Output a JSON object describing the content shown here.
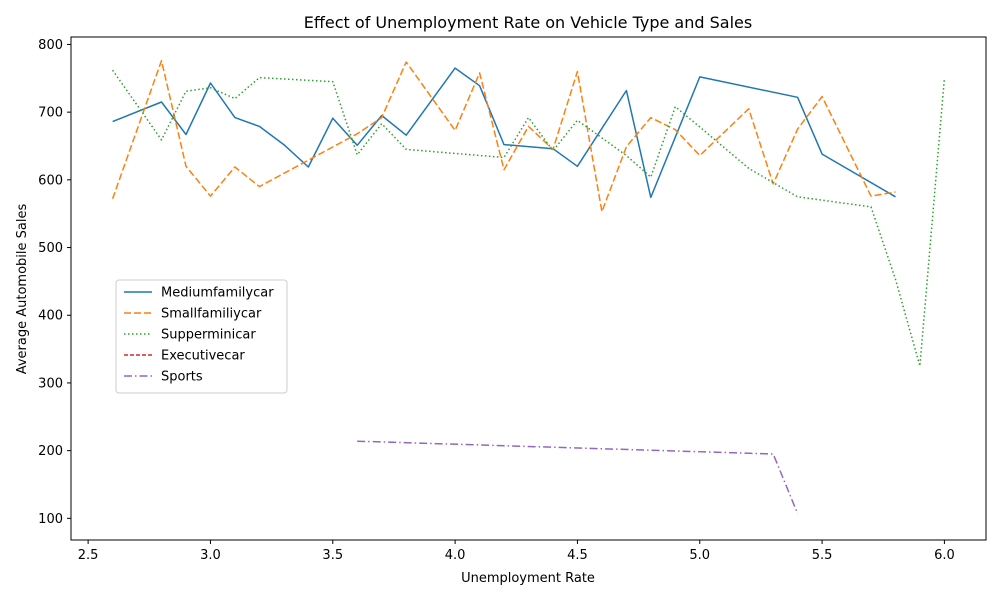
{
  "chart_data": {
    "type": "line",
    "title": "Effect of Unemployment Rate on Vehicle Type and Sales",
    "xlabel": "Unemployment Rate",
    "ylabel": "Average Automobile Sales",
    "xlim": [
      2.43,
      6.17
    ],
    "ylim": [
      68,
      811
    ],
    "xticks": [
      "2.5",
      "3.0",
      "3.5",
      "4.0",
      "4.5",
      "5.0",
      "5.5",
      "6.0"
    ],
    "yticks": [
      "100",
      "200",
      "300",
      "400",
      "500",
      "600",
      "700",
      "800"
    ],
    "grid": false,
    "legend_position": "center-left",
    "series": [
      {
        "name": "Mediumfamilycar",
        "color": "#1f77b4",
        "dash": "solid",
        "points": [
          [
            2.6,
            686
          ],
          [
            2.8,
            715
          ],
          [
            2.9,
            667
          ],
          [
            3.0,
            743
          ],
          [
            3.1,
            692
          ],
          [
            3.2,
            679
          ],
          [
            3.3,
            652
          ],
          [
            3.4,
            619
          ],
          [
            3.5,
            691
          ],
          [
            3.6,
            651
          ],
          [
            3.7,
            695
          ],
          [
            3.8,
            666
          ],
          [
            4.0,
            765
          ],
          [
            4.1,
            739
          ],
          [
            4.2,
            652
          ],
          [
            4.4,
            646
          ],
          [
            4.5,
            620
          ],
          [
            4.7,
            732
          ],
          [
            4.8,
            574
          ],
          [
            5.0,
            752
          ],
          [
            5.4,
            722
          ],
          [
            5.5,
            638
          ],
          [
            5.8,
            575
          ]
        ]
      },
      {
        "name": "Smallfamiliycar",
        "color": "#ff7f0e",
        "dash": "dashed",
        "points": [
          [
            2.6,
            572
          ],
          [
            2.8,
            776
          ],
          [
            2.9,
            620
          ],
          [
            3.0,
            576
          ],
          [
            3.1,
            619
          ],
          [
            3.2,
            590
          ],
          [
            3.6,
            668
          ],
          [
            3.7,
            692
          ],
          [
            3.8,
            774
          ],
          [
            4.0,
            673
          ],
          [
            4.1,
            758
          ],
          [
            4.2,
            615
          ],
          [
            4.3,
            679
          ],
          [
            4.4,
            645
          ],
          [
            4.5,
            760
          ],
          [
            4.6,
            553
          ],
          [
            4.7,
            649
          ],
          [
            4.8,
            692
          ],
          [
            4.9,
            674
          ],
          [
            5.0,
            636
          ],
          [
            5.2,
            705
          ],
          [
            5.3,
            594
          ],
          [
            5.4,
            675
          ],
          [
            5.5,
            723
          ],
          [
            5.7,
            576
          ],
          [
            5.8,
            582
          ]
        ]
      },
      {
        "name": "Supperminicar",
        "color": "#2ca02c",
        "dash": "dotted",
        "points": [
          [
            2.6,
            762
          ],
          [
            2.8,
            659
          ],
          [
            2.9,
            731
          ],
          [
            3.0,
            736
          ],
          [
            3.1,
            720
          ],
          [
            3.2,
            751
          ],
          [
            3.5,
            745
          ],
          [
            3.6,
            637
          ],
          [
            3.7,
            683
          ],
          [
            3.8,
            645
          ],
          [
            4.2,
            633
          ],
          [
            4.3,
            692
          ],
          [
            4.4,
            643
          ],
          [
            4.5,
            688
          ],
          [
            4.7,
            636
          ],
          [
            4.8,
            604
          ],
          [
            4.9,
            708
          ],
          [
            5.0,
            678
          ],
          [
            5.2,
            617
          ],
          [
            5.4,
            575
          ],
          [
            5.7,
            560
          ],
          [
            5.8,
            453
          ],
          [
            5.9,
            325
          ],
          [
            6.0,
            750
          ]
        ]
      },
      {
        "name": "Executivecar",
        "color": "#d62728",
        "dash": "dashed-fine",
        "points": []
      },
      {
        "name": "Sports",
        "color": "#9467bd",
        "dash": "dashdot",
        "points": [
          [
            3.6,
            214
          ],
          [
            5.3,
            195
          ],
          [
            5.4,
            107
          ]
        ]
      }
    ]
  }
}
